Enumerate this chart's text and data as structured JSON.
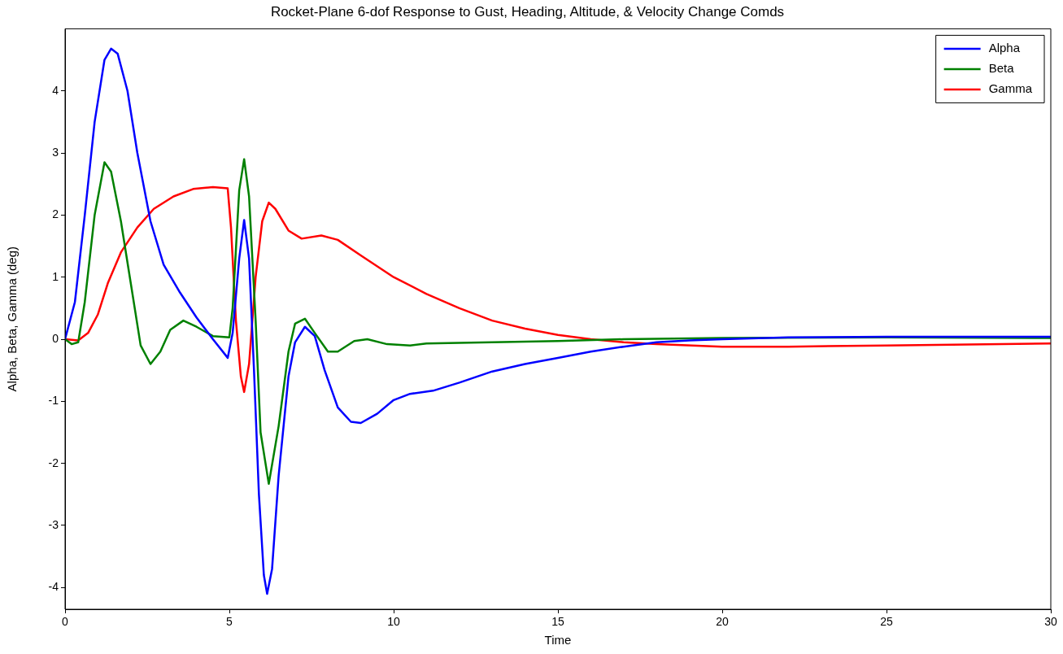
{
  "chart_data": {
    "type": "line",
    "title": "Rocket-Plane 6-dof Response to Gust, Heading, Altitude, & Velocity Change Comds",
    "xlabel": "Time",
    "ylabel": "Alpha, Beta, Gamma (deg)",
    "xlim": [
      0,
      30
    ],
    "xticks": [
      0,
      5,
      10,
      15,
      20,
      25,
      30
    ],
    "ylim": [
      -4.35,
      5
    ],
    "yticks": [
      -4,
      -3,
      -2,
      -1,
      0,
      1,
      2,
      3,
      4
    ],
    "grid": false,
    "legend": "top right",
    "marker": "none",
    "line_style": "solid",
    "series": [
      {
        "name": "Alpha",
        "color": "#0000ff",
        "x": [
          0,
          0.3,
          0.6,
          0.9,
          1.2,
          1.4,
          1.6,
          1.9,
          2.2,
          2.6,
          3.0,
          3.5,
          4.0,
          4.5,
          4.95,
          5.1,
          5.3,
          5.45,
          5.6,
          5.75,
          5.9,
          6.05,
          6.15,
          6.3,
          6.5,
          6.8,
          7.0,
          7.3,
          7.6,
          7.9,
          8.3,
          8.7,
          9.0,
          9.5,
          10.0,
          10.5,
          11.2,
          12,
          13,
          14,
          15,
          16,
          17,
          18,
          19,
          20,
          22,
          25,
          30
        ],
        "values": [
          0,
          0.6,
          2,
          3.5,
          4.5,
          4.68,
          4.6,
          4.0,
          3.0,
          1.9,
          1.2,
          0.75,
          0.35,
          0.0,
          -0.3,
          0.1,
          1.3,
          1.92,
          1.3,
          -0.5,
          -2.5,
          -3.8,
          -4.1,
          -3.7,
          -2.2,
          -0.6,
          -0.05,
          0.2,
          0.05,
          -0.5,
          -1.1,
          -1.33,
          -1.35,
          -1.2,
          -0.98,
          -0.88,
          -0.83,
          -0.7,
          -0.52,
          -0.4,
          -0.3,
          -0.2,
          -0.12,
          -0.05,
          -0.02,
          0.0,
          0.03,
          0.04,
          0.04
        ]
      },
      {
        "name": "Beta",
        "color": "#008000",
        "x": [
          0,
          0.2,
          0.4,
          0.6,
          0.9,
          1.2,
          1.4,
          1.7,
          2.0,
          2.3,
          2.6,
          2.9,
          3.2,
          3.6,
          4.0,
          4.5,
          5.0,
          5.1,
          5.3,
          5.45,
          5.6,
          5.8,
          5.95,
          6.2,
          6.5,
          6.8,
          7.0,
          7.3,
          7.6,
          8.0,
          8.3,
          8.8,
          9.2,
          9.8,
          10.5,
          11,
          13,
          15,
          17,
          20,
          25,
          30
        ],
        "values": [
          0,
          -0.08,
          -0.05,
          0.6,
          2.0,
          2.85,
          2.7,
          1.9,
          0.9,
          -0.1,
          -0.4,
          -0.2,
          0.15,
          0.3,
          0.2,
          0.05,
          0.03,
          0.5,
          2.4,
          2.9,
          2.3,
          0.3,
          -1.5,
          -2.33,
          -1.4,
          -0.2,
          0.25,
          0.33,
          0.1,
          -0.2,
          -0.2,
          -0.03,
          0,
          -0.08,
          -0.1,
          -0.07,
          -0.05,
          -0.03,
          0,
          0.02,
          0.03,
          0.02
        ]
      },
      {
        "name": "Gamma",
        "color": "#ff0000",
        "x": [
          0,
          0.4,
          0.7,
          1.0,
          1.3,
          1.7,
          2.2,
          2.7,
          3.3,
          3.9,
          4.5,
          4.95,
          5.05,
          5.2,
          5.35,
          5.45,
          5.6,
          5.8,
          6.0,
          6.2,
          6.4,
          6.8,
          7.2,
          7.8,
          8.3,
          9,
          10,
          11,
          12,
          13,
          14,
          15,
          16,
          17,
          18,
          20,
          22,
          25,
          30
        ],
        "values": [
          0,
          -0.02,
          0.1,
          0.4,
          0.9,
          1.4,
          1.8,
          2.1,
          2.3,
          2.42,
          2.45,
          2.43,
          1.8,
          0.3,
          -0.6,
          -0.85,
          -0.4,
          1.0,
          1.9,
          2.2,
          2.1,
          1.75,
          1.62,
          1.67,
          1.6,
          1.35,
          1.0,
          0.73,
          0.5,
          0.3,
          0.17,
          0.07,
          0.0,
          -0.05,
          -0.08,
          -0.12,
          -0.12,
          -0.1,
          -0.07
        ]
      }
    ]
  }
}
